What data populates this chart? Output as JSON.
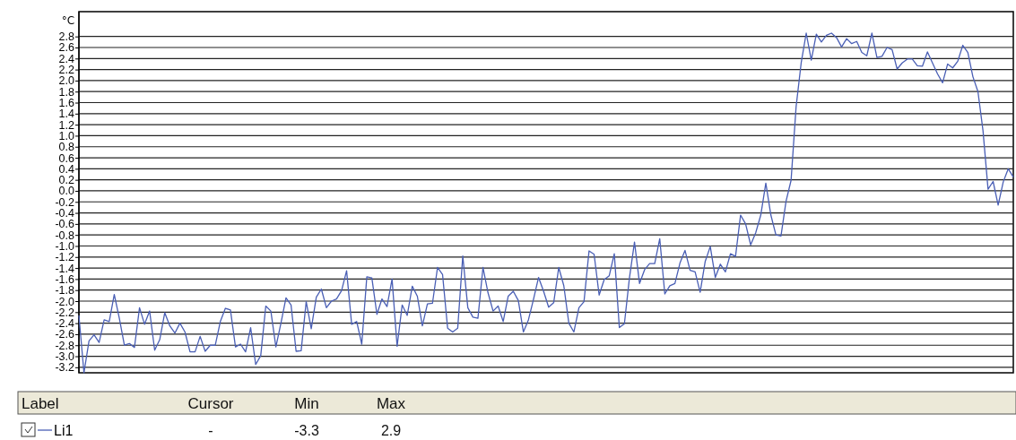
{
  "chart_data": {
    "type": "line",
    "ylabel": "°C",
    "categories": [
      null,
      null,
      null,
      null,
      null,
      null,
      null,
      null,
      null,
      null,
      null,
      null,
      null,
      null,
      null,
      null,
      null,
      null,
      null,
      null,
      null,
      null,
      null,
      null,
      null,
      null,
      null,
      null,
      null,
      null,
      null,
      null,
      null,
      null,
      null,
      null,
      null,
      null,
      null,
      null,
      null,
      null,
      null,
      null,
      null,
      null,
      null,
      null,
      null,
      null,
      null,
      null,
      null,
      null,
      null,
      null,
      null,
      null,
      null,
      null,
      null,
      null,
      null,
      null,
      null,
      null,
      null,
      null,
      null,
      null,
      null,
      null,
      null,
      null,
      null,
      null,
      null,
      null,
      null,
      null,
      null,
      null,
      null,
      null,
      null,
      null,
      null,
      null,
      null,
      null,
      null,
      null,
      null,
      null,
      null,
      null,
      null,
      null,
      null,
      null,
      null,
      null,
      null,
      null,
      null,
      null,
      null,
      null,
      null,
      null,
      null,
      null,
      null,
      null,
      null,
      null,
      null,
      null,
      null,
      null,
      null,
      null,
      null,
      null,
      null,
      null,
      null,
      null,
      null,
      null,
      null,
      null,
      null,
      null,
      null,
      null,
      null,
      null,
      null,
      null,
      null,
      null,
      null,
      null,
      null,
      null,
      null,
      null,
      null,
      null,
      null,
      null,
      null,
      null,
      null,
      null,
      null,
      null,
      null,
      null,
      null,
      null,
      null,
      null,
      null,
      null,
      null,
      null,
      null,
      null,
      null,
      null,
      null,
      null,
      null,
      null,
      null,
      null,
      null,
      null,
      null,
      null,
      null,
      null,
      null,
      null
    ],
    "series": [
      {
        "name": "Li1",
        "color": "#4a5fb5",
        "values": [
          -2.26,
          -3.3,
          -2.72,
          -2.61,
          -2.75,
          -2.34,
          -2.37,
          -1.88,
          -2.31,
          -2.8,
          -2.77,
          -2.84,
          -2.12,
          -2.42,
          -2.18,
          -2.89,
          -2.7,
          -2.21,
          -2.45,
          -2.58,
          -2.4,
          -2.56,
          -2.92,
          -2.92,
          -2.64,
          -2.91,
          -2.8,
          -2.8,
          -2.37,
          -2.13,
          -2.16,
          -2.83,
          -2.78,
          -2.92,
          -2.48,
          -3.15,
          -2.99,
          -2.09,
          -2.18,
          -2.83,
          -2.4,
          -1.94,
          -2.07,
          -2.91,
          -2.9,
          -2.01,
          -2.5,
          -1.93,
          -1.78,
          -2.12,
          -2.0,
          -1.96,
          -1.81,
          -1.45,
          -2.42,
          -2.37,
          -2.78,
          -1.56,
          -1.58,
          -2.24,
          -1.96,
          -2.1,
          -1.6,
          -2.82,
          -2.07,
          -2.26,
          -1.73,
          -1.91,
          -2.45,
          -2.05,
          -2.04,
          -1.39,
          -1.52,
          -2.49,
          -2.56,
          -2.49,
          -1.18,
          -2.12,
          -2.29,
          -2.31,
          -1.39,
          -1.85,
          -2.18,
          -2.09,
          -2.37,
          -1.91,
          -1.82,
          -1.99,
          -2.56,
          -2.34,
          -1.97,
          -1.57,
          -1.82,
          -2.11,
          -2.03,
          -1.39,
          -1.72,
          -2.4,
          -2.56,
          -2.12,
          -2.01,
          -1.09,
          -1.15,
          -1.89,
          -1.61,
          -1.54,
          -1.14,
          -2.48,
          -2.41,
          -1.58,
          -0.93,
          -1.68,
          -1.43,
          -1.32,
          -1.32,
          -0.87,
          -1.87,
          -1.72,
          -1.68,
          -1.31,
          -1.08,
          -1.44,
          -1.47,
          -1.84,
          -1.28,
          -1.01,
          -1.57,
          -1.33,
          -1.47,
          -1.14,
          -1.19,
          -0.44,
          -0.6,
          -0.98,
          -0.76,
          -0.44,
          0.14,
          -0.44,
          -0.8,
          -0.82,
          -0.19,
          0.19,
          1.53,
          2.32,
          2.86,
          2.37,
          2.84,
          2.7,
          2.82,
          2.86,
          2.78,
          2.61,
          2.76,
          2.67,
          2.71,
          2.51,
          2.45,
          2.86,
          2.42,
          2.44,
          2.6,
          2.56,
          2.21,
          2.32,
          2.39,
          2.39,
          2.27,
          2.26,
          2.52,
          2.32,
          2.12,
          1.96,
          2.3,
          2.23,
          2.35,
          2.64,
          2.51,
          2.07,
          1.8,
          1.09,
          0.03,
          0.17,
          -0.26,
          0.16,
          0.4,
          0.25
        ]
      }
    ],
    "ylim": [
      -3.3,
      3.25
    ],
    "yticks": [
      {
        "value": 2.8,
        "label": "2.8"
      },
      {
        "value": 2.6,
        "label": "2.6"
      },
      {
        "value": 2.4,
        "label": "2.4"
      },
      {
        "value": 2.2,
        "label": "2.2"
      },
      {
        "value": 2.0,
        "label": "2.0"
      },
      {
        "value": 1.8,
        "label": "1.8"
      },
      {
        "value": 1.6,
        "label": "1.6"
      },
      {
        "value": 1.4,
        "label": "1.4"
      },
      {
        "value": 1.2,
        "label": "1.2"
      },
      {
        "value": 1.0,
        "label": "1.0"
      },
      {
        "value": 0.8,
        "label": "0.8"
      },
      {
        "value": 0.6,
        "label": "0.6"
      },
      {
        "value": 0.4,
        "label": "0.4"
      },
      {
        "value": 0.2,
        "label": "0.2"
      },
      {
        "value": 0,
        "label": "0.0"
      },
      {
        "value": -0.2,
        "label": "-0.2"
      },
      {
        "value": -0.4,
        "label": "-0.4"
      },
      {
        "value": -0.6,
        "label": "-0.6"
      },
      {
        "value": -0.8,
        "label": "-0.8"
      },
      {
        "value": -1.0,
        "label": "-1.0"
      },
      {
        "value": -1.2,
        "label": "-1.2"
      },
      {
        "value": -1.4,
        "label": "-1.4"
      },
      {
        "value": -1.6,
        "label": "-1.6"
      },
      {
        "value": -1.8,
        "label": "-1.8"
      },
      {
        "value": -2.0,
        "label": "-2.0"
      },
      {
        "value": -2.2,
        "label": "-2.2"
      },
      {
        "value": -2.4,
        "label": "-2.4"
      },
      {
        "value": -2.6,
        "label": "-2.6"
      },
      {
        "value": -2.8,
        "label": "-2.8"
      },
      {
        "value": -3.0,
        "label": "-3.0"
      },
      {
        "value": -3.2,
        "label": "-3.2"
      }
    ],
    "grid": "y",
    "legend": "bottom",
    "tick_labels": "y",
    "marker": "none",
    "line_style": "solid",
    "annotations": [
      "Label",
      "Cursor",
      "Min",
      "Max",
      "-",
      "-3.3",
      "2.9"
    ]
  }
}
